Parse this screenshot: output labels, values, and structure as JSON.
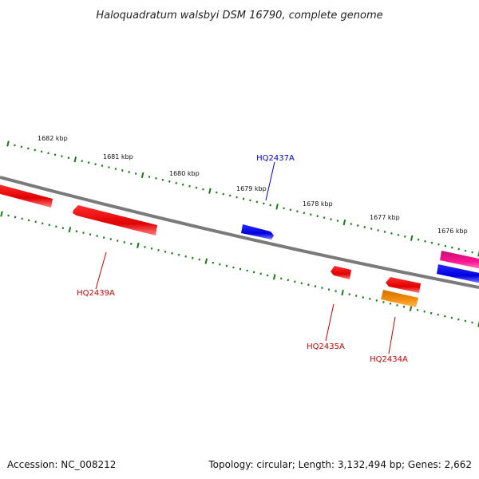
{
  "title": "Haloquadratum walsbyi DSM 16790, complete genome",
  "footer": {
    "accession": "Accession: NC_008212",
    "topology": "Topology: circular; Length: 3,132,494 bp; Genes: 2,662"
  },
  "colors": {
    "backbone": "#7a7a7a",
    "tick": "#1a7a1a",
    "red": "#ee0000",
    "blue": "#0000ee",
    "orange": "#f08000",
    "magenta": "#ee1493",
    "label_red": "#cc0000",
    "label_blue": "#0000cc"
  },
  "scale": {
    "unit": "kbp",
    "labels": [
      "1682 kbp",
      "1681 kbp",
      "1680 kbp",
      "1679 kbp",
      "1678 kbp",
      "1677 kbp",
      "1676 kbp"
    ]
  },
  "genes": [
    {
      "name": "HQ2439A",
      "color": "red",
      "labeled": true
    },
    {
      "name": "HQ2437A",
      "color": "blue",
      "labeled": true
    },
    {
      "name": "HQ2435A",
      "color": "red",
      "labeled": true
    },
    {
      "name": "HQ2434A",
      "color": "orange",
      "labeled": true
    }
  ]
}
